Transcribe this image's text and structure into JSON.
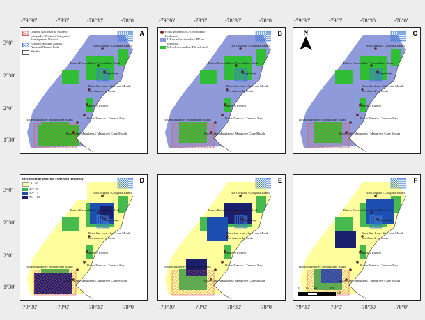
{
  "axes": {
    "x_ticks": [
      "-79°30'",
      "-79°0'",
      "-78°30'",
      "-78°0'"
    ],
    "y_ticks": [
      "3°0'",
      "2°30'",
      "2°0'",
      "1°30'"
    ]
  },
  "panels": [
    {
      "id": "A"
    },
    {
      "id": "B"
    },
    {
      "id": "C"
    },
    {
      "id": "D"
    },
    {
      "id": "E"
    },
    {
      "id": "F"
    }
  ],
  "places": {
    "gorgona": "Isla Gorgona / Gorgona Island",
    "pascualillos": "Banco Pascualillos / Pascualillos Bank",
    "sanquianga": "Sanquianga",
    "boca_san_juan": "Boca San Juan / San Juan Mouth",
    "san_juan_costa": "San Juan de la Costa",
    "pizarro": "Francisco Pizarro",
    "tumaco": "Bahía Tumaco / Tumaco Bay",
    "bocagrande": "Isla Bocagrande / Bocagrande Island",
    "cabo_manglares": "Boca Cabo Manglares / Mangrove Cape Mouth"
  },
  "legend_a": {
    "drmi": "Distrito Nacional de Manejo Integrado / National Integrated Management District",
    "pnn": "Parque Nacional Natural / National Natural Park",
    "narino": "Nariño"
  },
  "legend_b": {
    "hitos": "Hitos geográficos / Geographic landmarks",
    "no_sel": "UP no seleccionadas / PU no selected",
    "sel": "UP seleccionadas / PU selected"
  },
  "legend_d": {
    "title": "Frecuencia de selección / Selection frequency",
    "classes": [
      "0 - 25",
      "25 - 50",
      "50 - 75",
      "75 - 100"
    ]
  },
  "north": "N",
  "scale": {
    "ticks": [
      "0",
      "15",
      "30",
      "60"
    ],
    "unit": "km"
  },
  "colors": {
    "not_selected": "#8e9ad9",
    "selected": "#2cbf2c",
    "freq_0_25": "#ffff9e",
    "freq_25_50": "#3cb64a",
    "freq_50_75": "#1c4fb0",
    "freq_75_100": "#1c1f6e",
    "hatch_red": "#e05a5a",
    "hatch_blue": "#3b7bd8"
  }
}
